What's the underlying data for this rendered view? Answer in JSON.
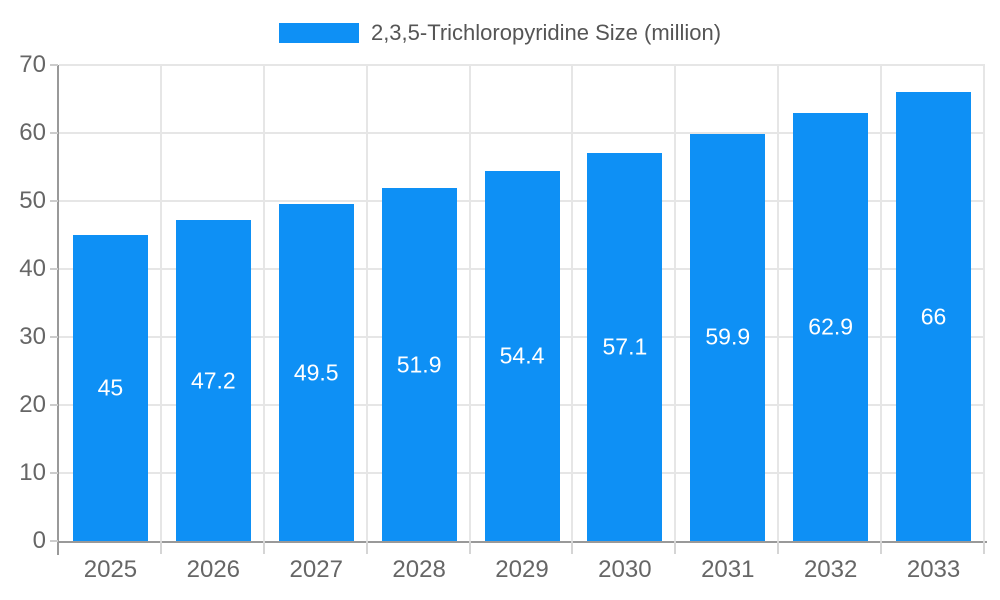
{
  "legend": {
    "label": "2,3,5-Trichloropyridine Size (million)",
    "swatch_color": "#0e90f5"
  },
  "chart_data": {
    "type": "bar",
    "title": "2,3,5-Trichloropyridine Size (million)",
    "categories": [
      "2025",
      "2026",
      "2027",
      "2028",
      "2029",
      "2030",
      "2031",
      "2032",
      "2033"
    ],
    "values": [
      45,
      47.2,
      49.5,
      51.9,
      54.4,
      57.1,
      59.9,
      62.9,
      66
    ],
    "value_labels": [
      "45",
      "47.2",
      "49.5",
      "51.9",
      "54.4",
      "57.1",
      "59.9",
      "62.9",
      "66"
    ],
    "xlabel": "",
    "ylabel": "",
    "ylim": [
      0,
      70
    ],
    "y_ticks": [
      0,
      10,
      20,
      30,
      40,
      50,
      60,
      70
    ],
    "grid": true,
    "legend_position": "top",
    "colors": {
      "bar": "#0e90f5",
      "bar_label_text": "#ffffff",
      "axis_line": "#999999",
      "gridline": "#e6e6e6",
      "tick": "#cccccc",
      "axis_text": "#666666",
      "legend_text": "#555555",
      "background": "#ffffff"
    }
  }
}
